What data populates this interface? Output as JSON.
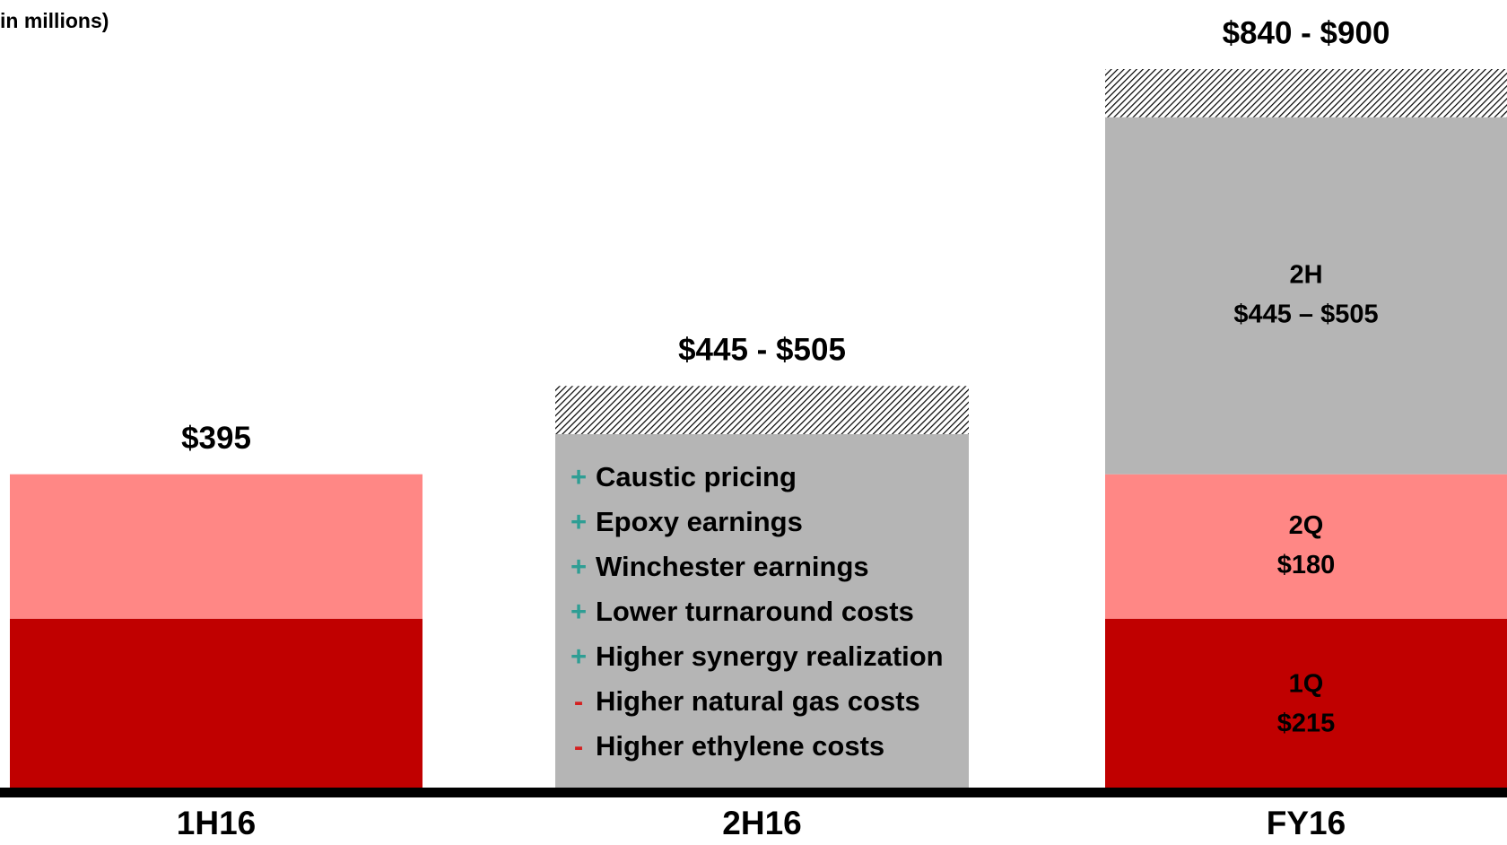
{
  "chart_data": {
    "type": "stacked_bar",
    "title": "in millions)",
    "categories": [
      "1H16",
      "2H16",
      "FY16"
    ],
    "series": [
      {
        "name": "1Q",
        "color": "#c00000",
        "values": [
          215,
          null,
          215
        ],
        "value_labels": [
          null,
          null,
          "$215"
        ]
      },
      {
        "name": "2Q",
        "color": "#ff8785",
        "values": [
          180,
          null,
          180
        ],
        "value_labels": [
          null,
          null,
          "$180"
        ]
      },
      {
        "name": "2H",
        "color": "#b5b5b5",
        "values": [
          null,
          445,
          445
        ],
        "value_labels": [
          null,
          null,
          "$445 – $505"
        ]
      },
      {
        "color": "hatch",
        "values": [
          null,
          60,
          60
        ]
      }
    ],
    "total_labels": [
      "$395",
      "$445 - $505",
      "$840 - $900"
    ],
    "drivers": [
      {
        "sign": "+",
        "text": "Caustic pricing"
      },
      {
        "sign": "+",
        "text": "Epoxy earnings"
      },
      {
        "sign": "+",
        "text": "Winchester earnings"
      },
      {
        "sign": "+",
        "text": "Lower turnaround costs"
      },
      {
        "sign": "+",
        "text": "Higher synergy realization"
      },
      {
        "sign": "-",
        "text": "Higher natural gas costs"
      },
      {
        "sign": "-",
        "text": "Higher ethylene costs"
      }
    ],
    "sign_colors": {
      "+": "#2e9e94",
      "-": "#d42020"
    },
    "ylim": [
      0,
      900
    ]
  }
}
